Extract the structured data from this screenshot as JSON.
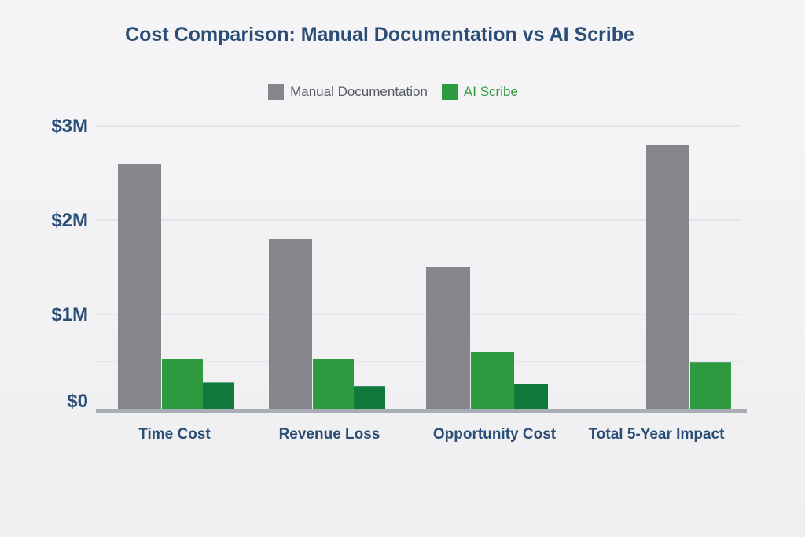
{
  "chart_data": {
    "type": "bar",
    "title": "Cost Comparison: Manual Documentation vs AI Scribe",
    "xlabel": "",
    "ylabel": "",
    "categories": [
      "Time Cost",
      "Revenue Loss",
      "Opportunity Cost",
      "Total 5-Year Impact"
    ],
    "y_ticks": [
      {
        "value": 0,
        "label": "$0"
      },
      {
        "value": 1,
        "label": "$1M"
      },
      {
        "value": 2,
        "label": "$2M"
      },
      {
        "value": 3,
        "label": "$3M"
      }
    ],
    "ylim": [
      0,
      3
    ],
    "grid": true,
    "legend_position": "top-center",
    "series": [
      {
        "name": "Manual Documentation",
        "color": "#85868c",
        "values": [
          2.6,
          1.8,
          1.5,
          2.8
        ]
      },
      {
        "name": "AI Scribe",
        "color": "#2e9a3f",
        "values": [
          0.53,
          0.53,
          0.6,
          0.49
        ]
      },
      {
        "name": "",
        "color": "#0f7a3c",
        "values": [
          0.28,
          0.24,
          0.26,
          null
        ]
      }
    ]
  },
  "colors": {
    "title": "#2b4e77",
    "axis_labels": "#2b4e77",
    "legend_manual_text": "#555a62",
    "legend_ai_text": "#2e9a3f",
    "grid": "#d3d6dc",
    "baseline": "#a8adb6"
  }
}
